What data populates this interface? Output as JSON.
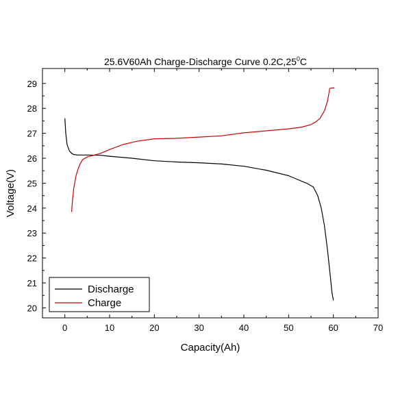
{
  "chart_data": {
    "type": "line",
    "title": "25.6V60Ah Charge-Discharge Curve  0.2C,25",
    "title_superscript": "0",
    "title_suffix": "C",
    "xlabel": "Capacity(Ah)",
    "ylabel": "Voltage(V)",
    "xlim": [
      -5,
      70
    ],
    "ylim": [
      19.6,
      29.6
    ],
    "xticks": [
      0,
      10,
      20,
      30,
      40,
      50,
      60,
      70
    ],
    "yticks": [
      20,
      21,
      22,
      23,
      24,
      25,
      26,
      27,
      28,
      29
    ],
    "grid": false,
    "legend_position": "bottom-left",
    "series": [
      {
        "name": "Discharge",
        "color": "#000000",
        "points": [
          [
            0,
            27.6
          ],
          [
            0.2,
            27.0
          ],
          [
            0.5,
            26.55
          ],
          [
            1,
            26.3
          ],
          [
            1.5,
            26.2
          ],
          [
            2,
            26.15
          ],
          [
            3,
            26.13
          ],
          [
            5,
            26.13
          ],
          [
            8,
            26.12
          ],
          [
            10,
            26.08
          ],
          [
            15,
            26.0
          ],
          [
            20,
            25.9
          ],
          [
            25,
            25.85
          ],
          [
            30,
            25.82
          ],
          [
            35,
            25.77
          ],
          [
            40,
            25.68
          ],
          [
            45,
            25.52
          ],
          [
            50,
            25.3
          ],
          [
            52,
            25.15
          ],
          [
            54,
            25.0
          ],
          [
            55.5,
            24.85
          ],
          [
            56.5,
            24.5
          ],
          [
            57.3,
            24.0
          ],
          [
            58,
            23.3
          ],
          [
            58.7,
            22.3
          ],
          [
            59.3,
            21.3
          ],
          [
            59.7,
            20.6
          ],
          [
            60,
            20.3
          ]
        ]
      },
      {
        "name": "Charge",
        "color": "#cc0000",
        "points": [
          [
            1.5,
            23.85
          ],
          [
            1.7,
            24.3
          ],
          [
            2,
            24.8
          ],
          [
            2.5,
            25.3
          ],
          [
            3,
            25.6
          ],
          [
            3.5,
            25.8
          ],
          [
            4,
            25.95
          ],
          [
            5,
            26.05
          ],
          [
            6,
            26.1
          ],
          [
            8,
            26.2
          ],
          [
            10,
            26.35
          ],
          [
            13,
            26.55
          ],
          [
            16,
            26.68
          ],
          [
            20,
            26.78
          ],
          [
            25,
            26.8
          ],
          [
            30,
            26.85
          ],
          [
            35,
            26.9
          ],
          [
            40,
            27.02
          ],
          [
            45,
            27.1
          ],
          [
            50,
            27.18
          ],
          [
            53,
            27.25
          ],
          [
            55,
            27.35
          ],
          [
            56,
            27.45
          ],
          [
            57,
            27.6
          ],
          [
            58,
            27.9
          ],
          [
            58.7,
            28.3
          ],
          [
            59.2,
            28.8
          ],
          [
            59.6,
            28.82
          ],
          [
            60.2,
            28.82
          ]
        ]
      }
    ]
  }
}
